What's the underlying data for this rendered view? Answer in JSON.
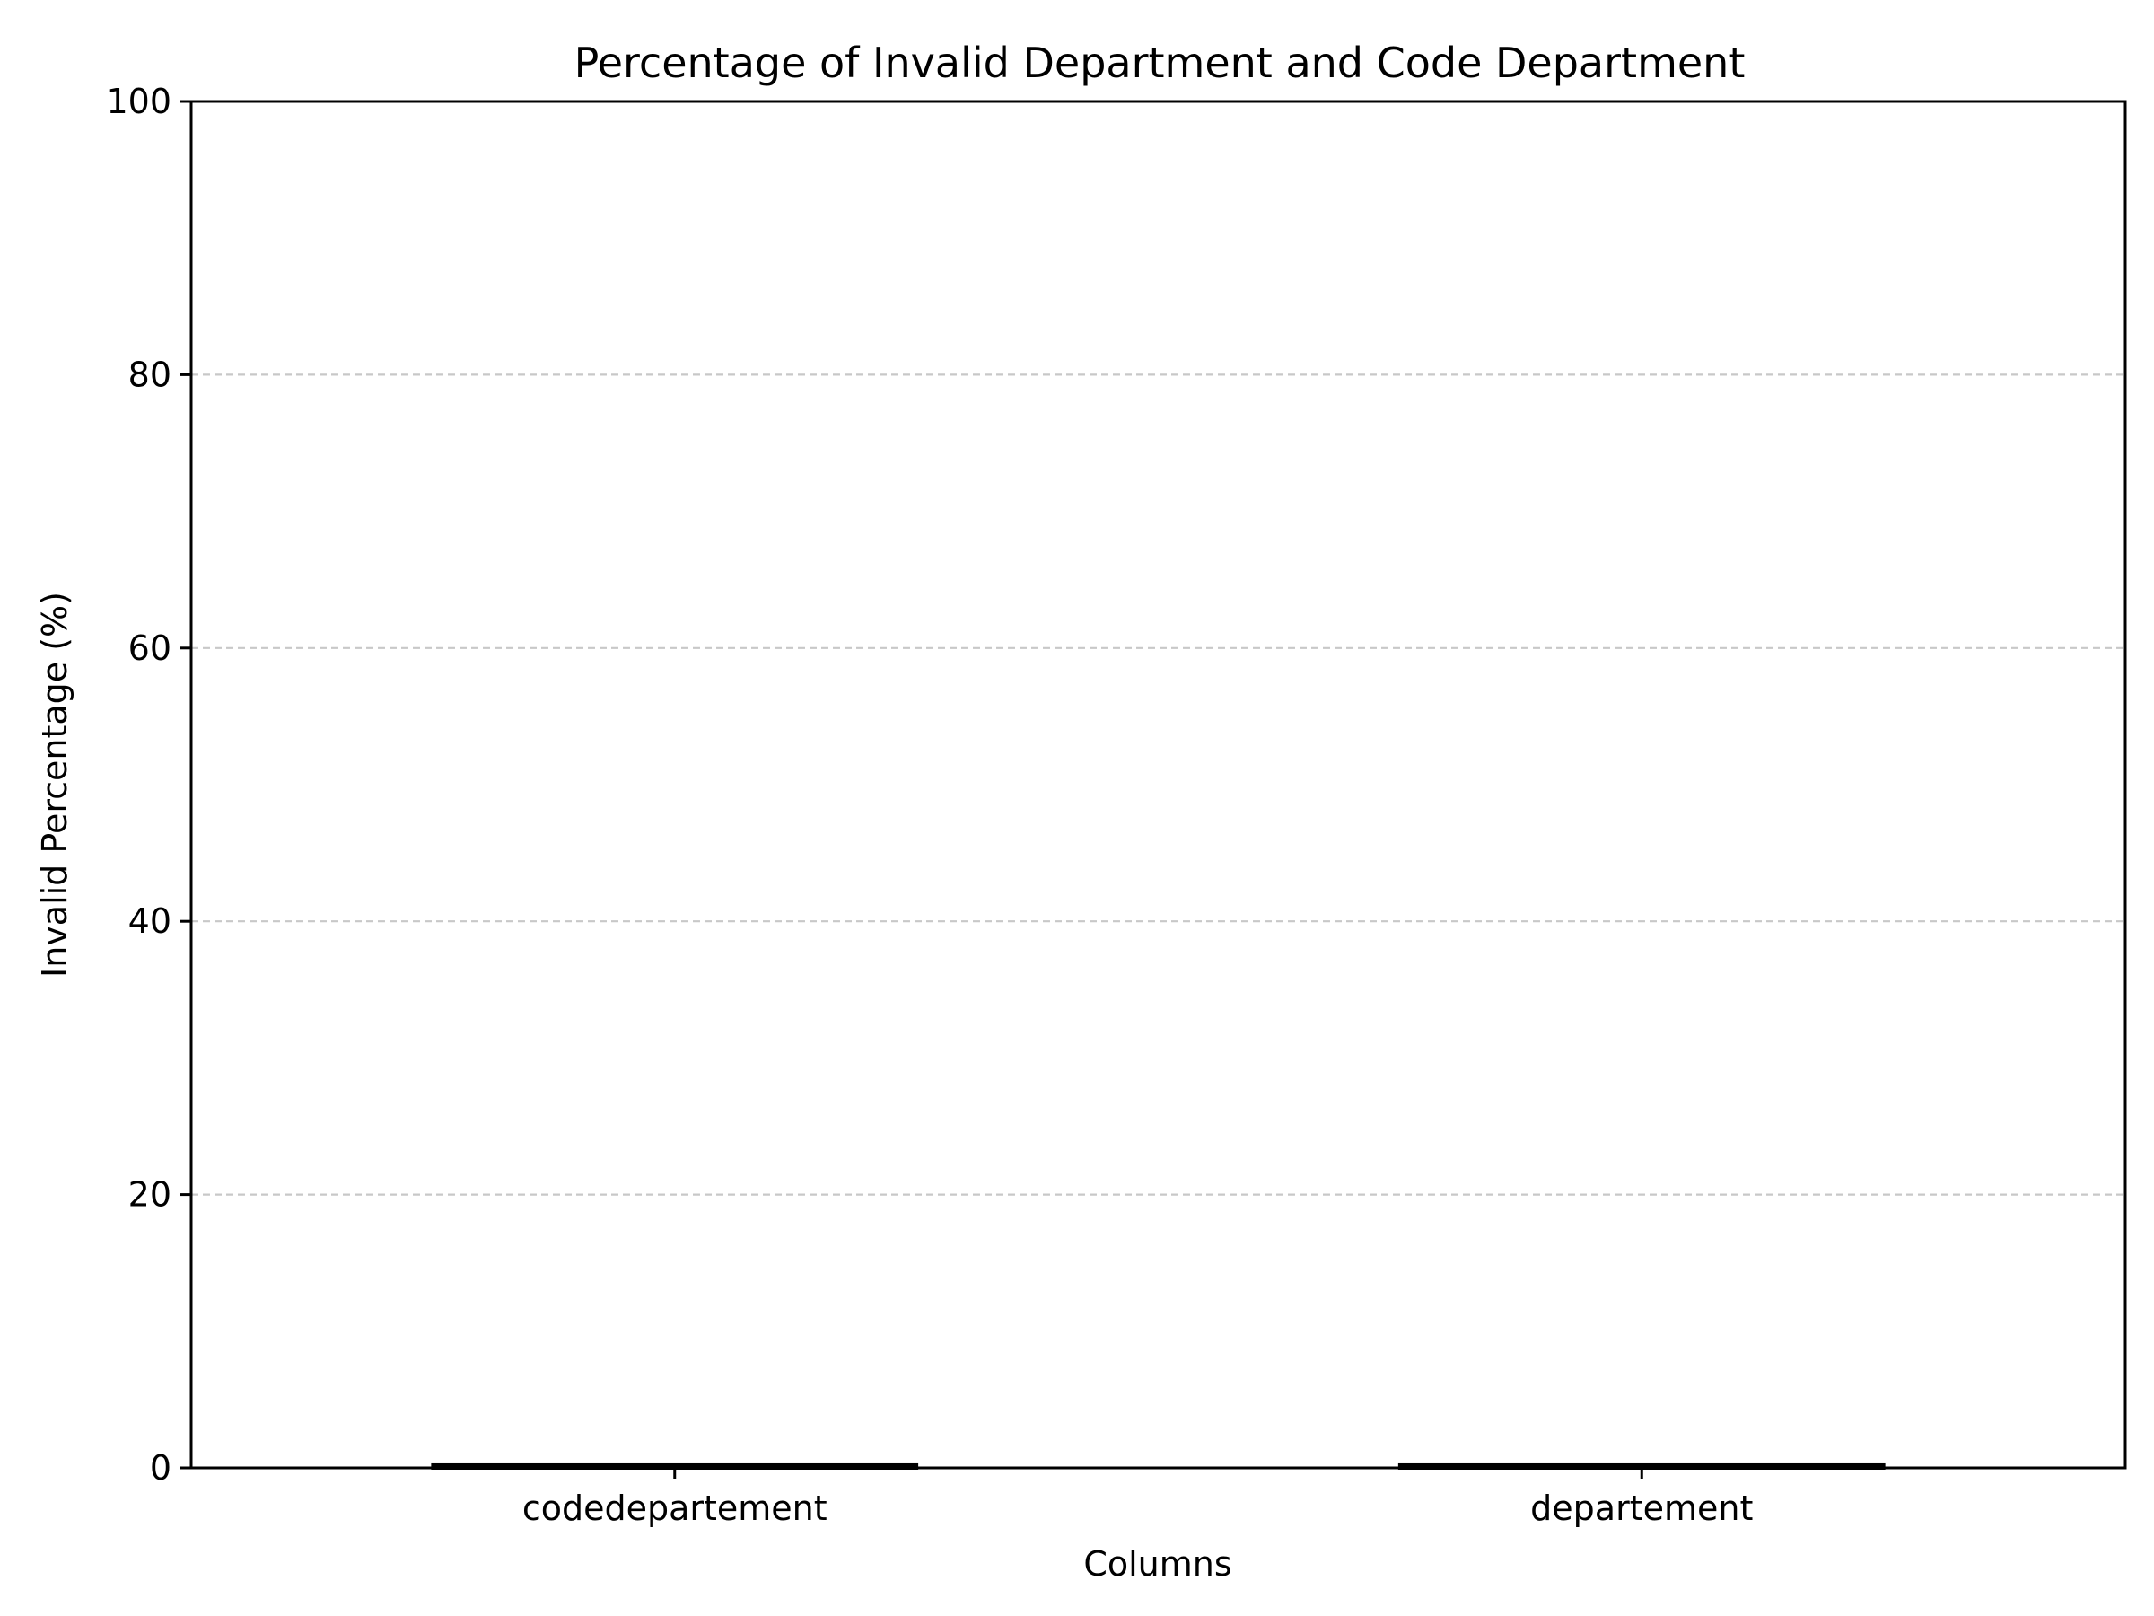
{
  "chart_data": {
    "type": "bar",
    "title": "Percentage of Invalid Department and Code Department",
    "xlabel": "Columns",
    "ylabel": "Invalid Percentage (%)",
    "categories": [
      "codedepartement",
      "departement"
    ],
    "values": [
      0.2,
      0.2
    ],
    "ylim": [
      0,
      100
    ],
    "yticks": [
      0,
      20,
      40,
      60,
      80,
      100
    ],
    "grid": "y-dashed",
    "colors": {
      "bar_edge": "#000000",
      "grid": "#c8c8c8",
      "axis": "#000000"
    }
  }
}
